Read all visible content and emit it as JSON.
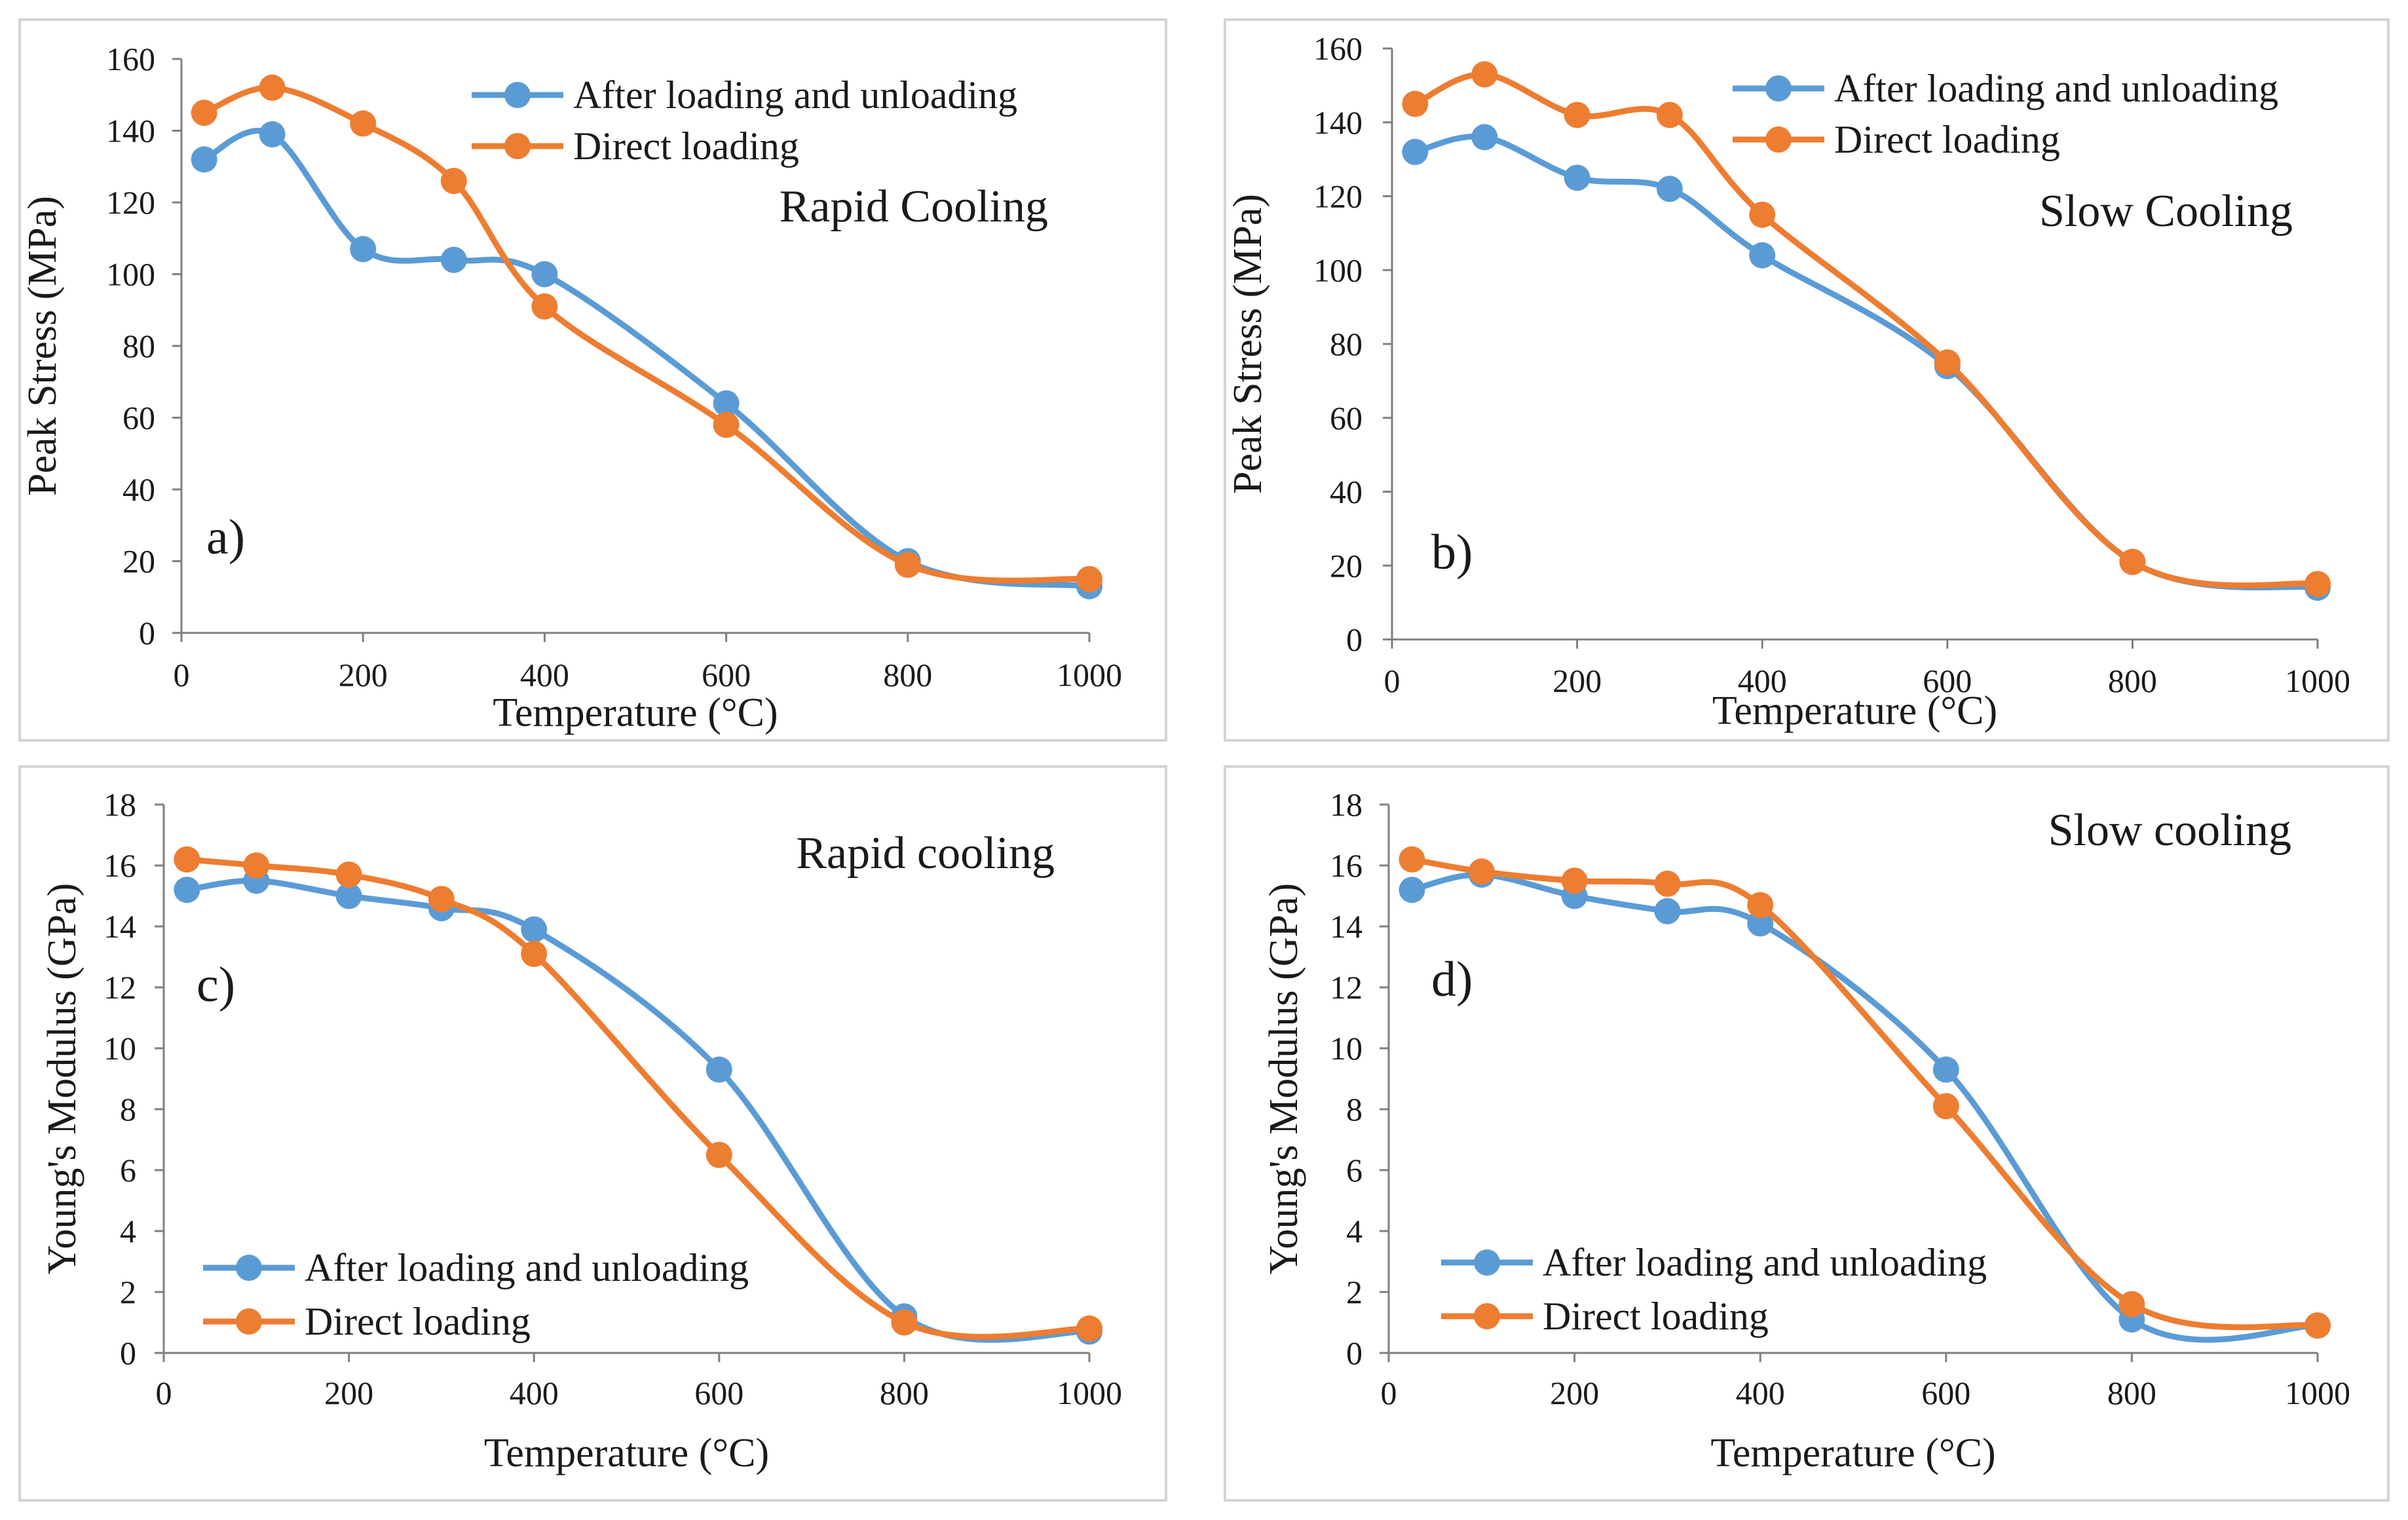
{
  "series_colors": {
    "after": "#5b9bd5",
    "direct": "#ed7d31"
  },
  "chart_data": [
    {
      "id": "a",
      "type": "line",
      "panel_label": "a)",
      "annotation": "Rapid Cooling",
      "xlabel": "Temperature (°C)",
      "ylabel": "Peak Stress (MPa)",
      "xlim": [
        0,
        1000
      ],
      "ylim": [
        0,
        160
      ],
      "xticks": [
        0,
        200,
        400,
        600,
        800,
        1000
      ],
      "yticks": [
        0,
        20,
        40,
        60,
        80,
        100,
        120,
        140,
        160
      ],
      "legend_position": "top-right",
      "x": [
        25,
        100,
        200,
        300,
        400,
        600,
        800,
        1000
      ],
      "series": [
        {
          "key": "after",
          "name": "After loading and unloading",
          "values": [
            132,
            139,
            107,
            104,
            100,
            64,
            20,
            13
          ]
        },
        {
          "key": "direct",
          "name": "Direct loading",
          "values": [
            145,
            152,
            142,
            126,
            91,
            58,
            19,
            15
          ]
        }
      ]
    },
    {
      "id": "b",
      "type": "line",
      "panel_label": "b)",
      "annotation": "Slow Cooling",
      "xlabel": "Temperature (°C)",
      "ylabel": "Peak Stress (MPa)",
      "xlim": [
        0,
        1000
      ],
      "ylim": [
        0,
        160
      ],
      "xticks": [
        0,
        200,
        400,
        600,
        800,
        1000
      ],
      "yticks": [
        0,
        20,
        40,
        60,
        80,
        100,
        120,
        140,
        160
      ],
      "legend_position": "top-right",
      "x": [
        25,
        100,
        200,
        300,
        400,
        600,
        800,
        1000
      ],
      "series": [
        {
          "key": "after",
          "name": "After loading and unloading",
          "values": [
            132,
            136,
            125,
            122,
            104,
            74,
            21,
            14
          ]
        },
        {
          "key": "direct",
          "name": "Direct loading",
          "values": [
            145,
            153,
            142,
            142,
            115,
            75,
            21,
            15
          ]
        }
      ]
    },
    {
      "id": "c",
      "type": "line",
      "panel_label": "c)",
      "annotation": "Rapid cooling",
      "xlabel": "Temperature (°C)",
      "ylabel": "Young's Modulus (GPa)",
      "xlim": [
        0,
        1000
      ],
      "ylim": [
        0,
        18
      ],
      "xticks": [
        0,
        200,
        400,
        600,
        800,
        1000
      ],
      "yticks": [
        0,
        2,
        4,
        6,
        8,
        10,
        12,
        14,
        16,
        18
      ],
      "legend_position": "bottom-left",
      "x": [
        25,
        100,
        200,
        300,
        400,
        600,
        800,
        1000
      ],
      "series": [
        {
          "key": "after",
          "name": "After loading and unloading",
          "values": [
            15.2,
            15.5,
            15.0,
            14.6,
            13.9,
            9.3,
            1.2,
            0.7
          ]
        },
        {
          "key": "direct",
          "name": "Direct loading",
          "values": [
            16.2,
            16.0,
            15.7,
            14.9,
            13.1,
            6.5,
            1.0,
            0.8
          ]
        }
      ]
    },
    {
      "id": "d",
      "type": "line",
      "panel_label": "d)",
      "annotation": "Slow cooling",
      "xlabel": "Temperature (°C)",
      "ylabel": "Young's Modulus (GPa)",
      "xlim": [
        0,
        1000
      ],
      "ylim": [
        0,
        18
      ],
      "xticks": [
        0,
        200,
        400,
        600,
        800,
        1000
      ],
      "yticks": [
        0,
        2,
        4,
        6,
        8,
        10,
        12,
        14,
        16,
        18
      ],
      "legend_position": "bottom-left",
      "x": [
        25,
        100,
        200,
        300,
        400,
        600,
        800,
        1000
      ],
      "series": [
        {
          "key": "after",
          "name": "After loading and unloading",
          "values": [
            15.2,
            15.7,
            15.0,
            14.5,
            14.1,
            9.3,
            1.1,
            0.9
          ]
        },
        {
          "key": "direct",
          "name": "Direct loading",
          "values": [
            16.2,
            15.8,
            15.5,
            15.4,
            14.7,
            8.1,
            1.6,
            0.9
          ]
        }
      ]
    }
  ]
}
